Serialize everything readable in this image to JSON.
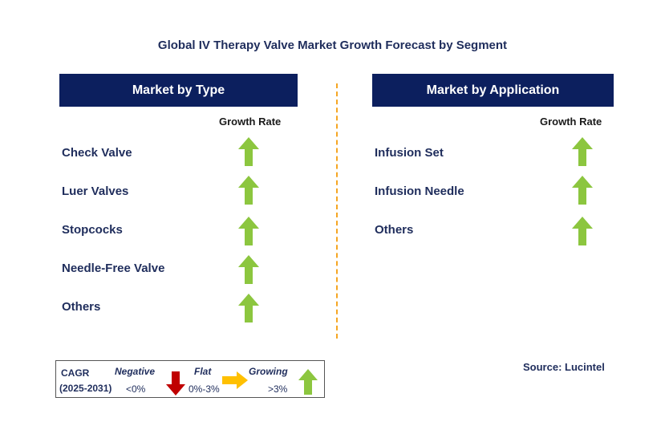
{
  "title": "Global IV Therapy Valve Market Growth Forecast by Segment",
  "left_panel": {
    "header": "Market by Type",
    "growth_rate_label": "Growth Rate",
    "items": [
      {
        "label": "Check Valve",
        "trend": "growing"
      },
      {
        "label": "Luer Valves",
        "trend": "growing"
      },
      {
        "label": "Stopcocks",
        "trend": "growing"
      },
      {
        "label": "Needle-Free Valve",
        "trend": "growing"
      },
      {
        "label": "Others",
        "trend": "growing"
      }
    ]
  },
  "right_panel": {
    "header": "Market by Application",
    "growth_rate_label": "Growth Rate",
    "items": [
      {
        "label": "Infusion Set",
        "trend": "growing"
      },
      {
        "label": "Infusion Needle",
        "trend": "growing"
      },
      {
        "label": "Others",
        "trend": "growing"
      }
    ]
  },
  "legend": {
    "cagr": "CAGR",
    "period": "(2025-2031)",
    "negative": "Negative",
    "negative_value": "<0%",
    "flat": "Flat",
    "flat_value": "0%-3%",
    "growing": "Growing",
    "growing_value": ">3%"
  },
  "source": "Source: Lucintel",
  "colors": {
    "header_bg": "#0c1f5e",
    "growing_arrow": "#8cc63f",
    "negative_arrow": "#c00000",
    "flat_arrow": "#ffc000",
    "divider": "#f5a623"
  }
}
